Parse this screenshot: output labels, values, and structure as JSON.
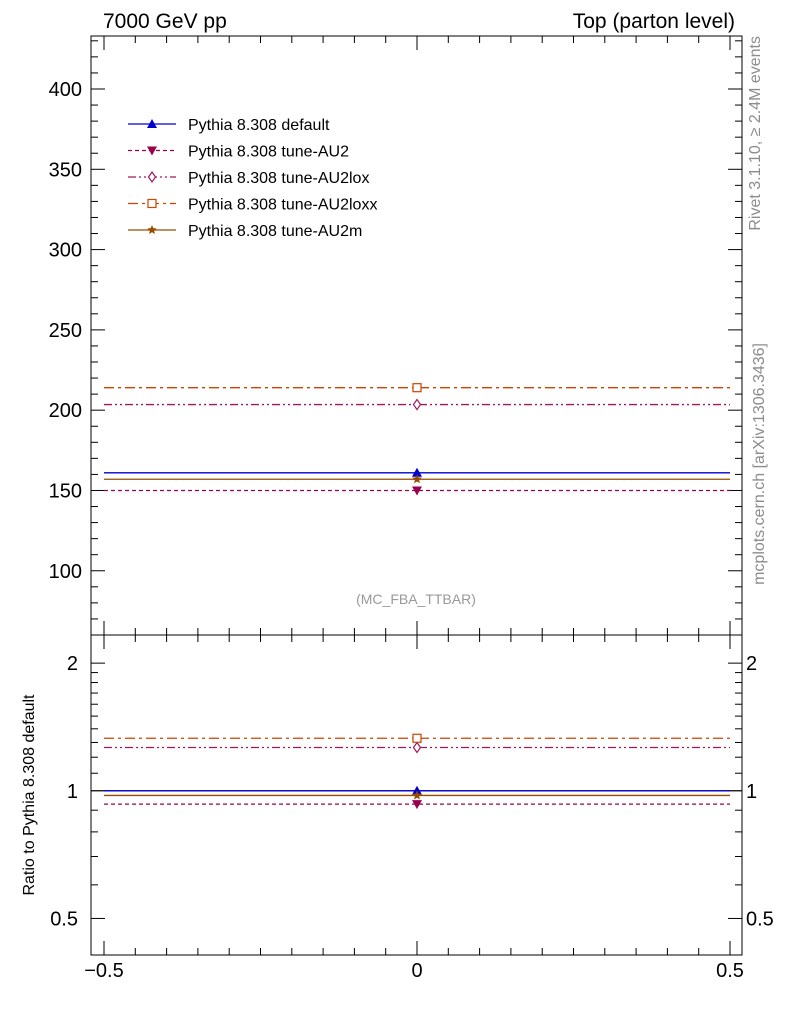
{
  "header": {
    "left": "7000 GeV pp",
    "right": "Top (parton level)"
  },
  "side": {
    "top": "Rivet 3.1.10, ≥ 2.4M events",
    "bottom": "mcplots.cern.ch [arXiv:1306.3436]"
  },
  "watermark": "(MC_FBA_TTBAR)",
  "chart_data": {
    "type": "line",
    "x_range": [
      -0.5,
      0.5
    ],
    "main": {
      "ylim": [
        60,
        433
      ],
      "yticks": [
        100,
        150,
        200,
        250,
        300,
        350,
        400
      ],
      "ytick_labels": [
        "100",
        "150",
        "200",
        "250",
        "300",
        "350",
        "400"
      ],
      "ylabel": ""
    },
    "ratio": {
      "ylabel": "Ratio to Pythia 8.308 default",
      "scale": "log",
      "ylim": [
        0.41,
        2.33
      ],
      "yticks": [
        0.5,
        1,
        2
      ],
      "ytick_labels": [
        "0.5",
        "1",
        "2"
      ]
    },
    "xticks": [
      -0.5,
      0,
      0.5
    ],
    "xtick_labels": [
      "−0.5",
      "0",
      "0.5"
    ],
    "series": [
      {
        "name": "Pythia 8.308 default",
        "x": 0,
        "value": 161,
        "ratio": 1.0,
        "color": "#0000cc",
        "dash": "",
        "marker": "triangle-up"
      },
      {
        "name": "Pythia 8.308 tune-AU2",
        "x": 0,
        "value": 150,
        "ratio": 0.93,
        "color": "#99004d",
        "dash": "4,3",
        "marker": "triangle-down"
      },
      {
        "name": "Pythia 8.308 tune-AU2lox",
        "x": 0,
        "value": 203.5,
        "ratio": 1.265,
        "color": "#a0185a",
        "dash": "8,3,2,3,2,3",
        "marker": "diamond-open"
      },
      {
        "name": "Pythia 8.308 tune-AU2loxx",
        "x": 0,
        "value": 214,
        "ratio": 1.33,
        "color": "#cc4400",
        "dash": "10,4,3,4",
        "marker": "square-open"
      },
      {
        "name": "Pythia 8.308 tune-AU2m",
        "x": 0,
        "value": 157,
        "ratio": 0.975,
        "color": "#994c00",
        "dash": "",
        "marker": "star"
      }
    ]
  }
}
